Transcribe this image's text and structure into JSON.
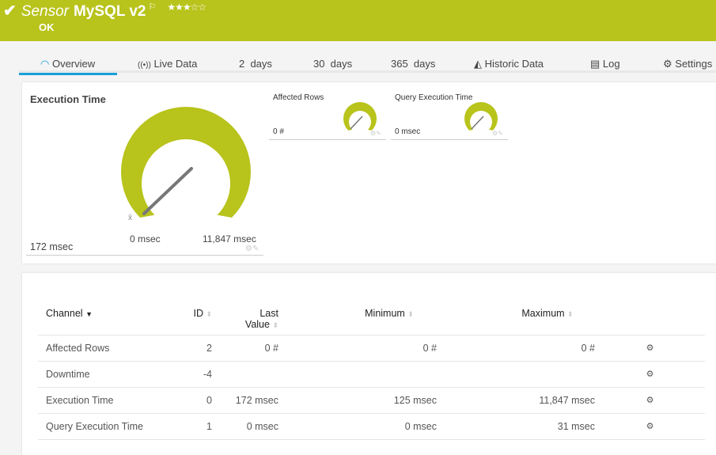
{
  "header": {
    "prefix": "Sensor",
    "name": "MySQL v2",
    "status": "OK",
    "stars": "★★★☆☆",
    "colors": {
      "header_bg": "#b8c31b",
      "accent": "#1a9fd9"
    }
  },
  "tabs": [
    {
      "label": "Overview",
      "icon": "gauge-icon"
    },
    {
      "label": "Live Data",
      "icon": "broadcast-icon"
    },
    {
      "label": "2  days"
    },
    {
      "label": "30  days"
    },
    {
      "label": "365  days"
    },
    {
      "label": "Historic Data",
      "icon": "area-chart-icon"
    },
    {
      "label": "Log",
      "icon": "log-icon"
    },
    {
      "label": "Settings",
      "icon": "gear-icon"
    }
  ],
  "gauges": {
    "main": {
      "title": "Execution Time",
      "value": "172 msec",
      "min_label": "0 msec",
      "max_label": "11,847 msec",
      "avg_marker": "x̄"
    },
    "affected": {
      "title": "Affected Rows",
      "value": "0 #"
    },
    "query": {
      "title": "Query Execution Time",
      "value": "0 msec"
    }
  },
  "table": {
    "headers": {
      "channel": "Channel",
      "id": "ID",
      "last_value_1": "Last",
      "last_value_2": "Value",
      "minimum": "Minimum",
      "maximum": "Maximum"
    },
    "rows": [
      {
        "channel": "Affected Rows",
        "id": "2",
        "last": "0 #",
        "min": "0 #",
        "max": "0 #"
      },
      {
        "channel": "Downtime",
        "id": "-4",
        "last": "",
        "min": "",
        "max": ""
      },
      {
        "channel": "Execution Time",
        "id": "0",
        "last": "172 msec",
        "min": "125 msec",
        "max": "11,847 msec"
      },
      {
        "channel": "Query Execution Time",
        "id": "1",
        "last": "0 msec",
        "min": "0 msec",
        "max": "31 msec"
      }
    ]
  }
}
